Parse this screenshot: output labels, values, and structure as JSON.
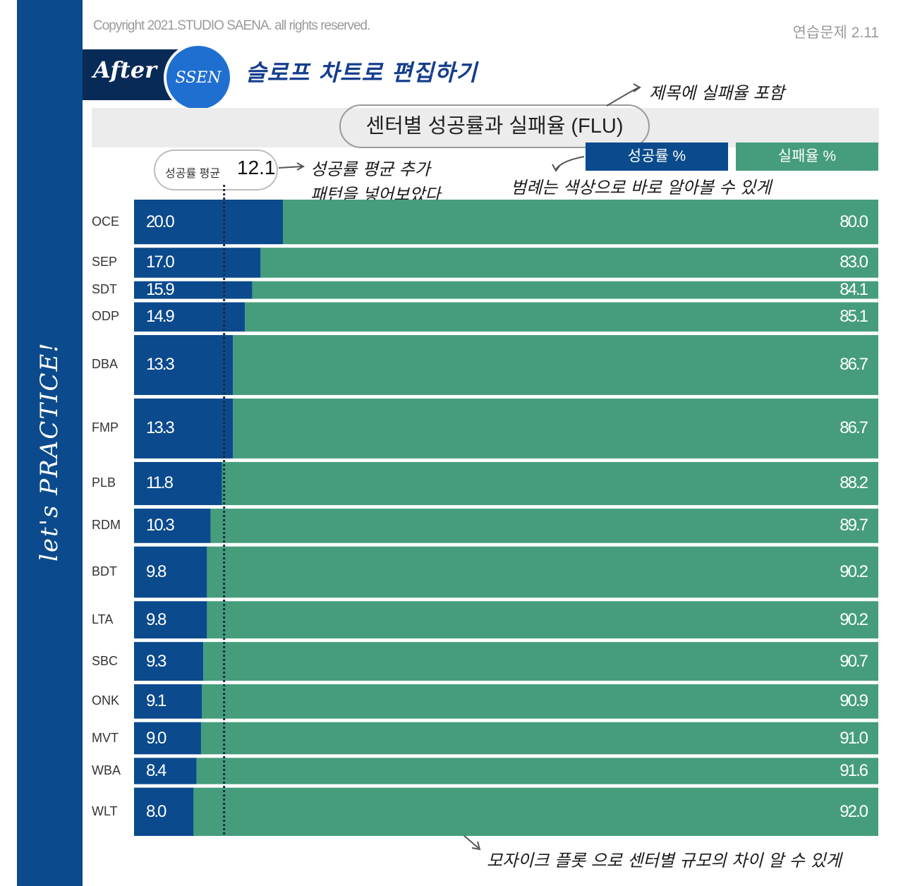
{
  "header": {
    "copyright": "Copyright 2021.STUDIO SAENA. all rights reserved.",
    "exercise": "연습문제 2.11",
    "after_label": "After",
    "ssen_label": "SSEN",
    "heading": "슬로프 차트로 편집하기",
    "sidebar_text": "let's PRACTICE!"
  },
  "notes": {
    "title_note": "제목에 실패율 포함",
    "average_note_1": "성공률 평균 추가",
    "average_note_2": "패턴을 넣어보았다",
    "legend_note": "범례는 색상으로 바로 알아볼 수 있게",
    "mosaic_note": "모자이크 플롯 으로 센터별 규모의 차이 알 수 있게"
  },
  "chart_data": {
    "type": "bar",
    "stacked": true,
    "orientation": "horizontal",
    "percent": true,
    "title": "센터별 성공률과 실패율 (FLU)",
    "categories": [
      "OCE",
      "SEP",
      "SDT",
      "ODP",
      "DBA",
      "FMP",
      "PLB",
      "RDM",
      "BDT",
      "LTA",
      "SBC",
      "ONK",
      "MVT",
      "WBA",
      "WLT"
    ],
    "series": [
      {
        "name": "성공률 %",
        "color": "#0b4a8c",
        "values": [
          20.0,
          17.0,
          15.9,
          14.9,
          13.3,
          13.3,
          11.8,
          10.3,
          9.8,
          9.8,
          9.3,
          9.1,
          9.0,
          8.4,
          8.0
        ]
      },
      {
        "name": "실패율 %",
        "color": "#459d7c",
        "values": [
          80.0,
          83.0,
          84.1,
          85.1,
          86.7,
          86.7,
          88.2,
          89.7,
          90.2,
          90.2,
          90.7,
          90.9,
          91.0,
          91.6,
          92.0
        ]
      }
    ],
    "relative_sizes": [
      61,
      41,
      24,
      40,
      82,
      82,
      59,
      47,
      70,
      51,
      53,
      47,
      44,
      36,
      66
    ],
    "average": {
      "label": "성공률 평균",
      "value": 12.1
    },
    "xlim": [
      0,
      100
    ],
    "legend_position": "top-right",
    "grid": false
  }
}
